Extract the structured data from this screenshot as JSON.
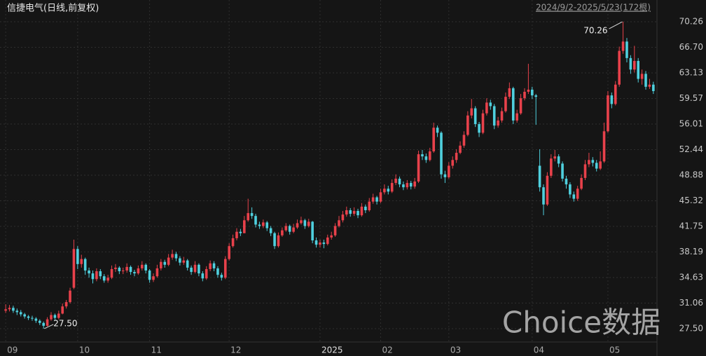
{
  "chart_data": {
    "type": "candlestick",
    "title": "信捷电气(日线,前复权)",
    "range_label": "2024/9/2-2025/5/23(172根)",
    "watermark": "Choice数据",
    "up_color": "#e8414b",
    "down_color": "#4fd0de",
    "ylim": [
      25.74,
      73.29
    ],
    "yticks": [
      70.26,
      {
        "value": 66.7,
        "label": "66.70"
      },
      63.13,
      59.57,
      56.01,
      52.44,
      48.88,
      45.32,
      41.75,
      38.19,
      34.63,
      31.06,
      {
        "value": 27.5,
        "label": "27.50"
      }
    ],
    "xlim": [
      -1.5,
      171.4
    ],
    "xticks": [
      {
        "value": 0,
        "label": "09"
      },
      {
        "value": 19,
        "label": "10"
      },
      {
        "value": 38,
        "label": "11"
      },
      {
        "value": 59,
        "label": "12"
      },
      {
        "value": 83,
        "label": "2025"
      },
      {
        "value": 99,
        "label": "02"
      },
      {
        "value": 117,
        "label": "03"
      },
      {
        "value": 139,
        "label": "04"
      },
      {
        "value": 159,
        "label": "05"
      }
    ],
    "grid": true,
    "annotations": [
      {
        "value": 70.26,
        "label": "70.26"
      },
      {
        "value": 27.5,
        "label": "27.50"
      }
    ],
    "open": [
      30.0,
      30.2,
      30.4,
      30.0,
      29.8,
      29.5,
      29.2,
      29.0,
      28.9,
      28.6,
      28.3,
      27.9,
      28.8,
      29.4,
      29.0,
      29.6,
      30.6,
      31.2,
      33.2,
      38.6,
      36.5,
      37.2,
      35.6,
      35.2,
      34.4,
      35.5,
      34.8,
      34.2,
      34.6,
      35.8,
      36.0,
      35.5,
      35.6,
      36.1,
      35.4,
      35.2,
      35.9,
      36.4,
      35.6,
      34.3,
      34.8,
      35.9,
      36.8,
      36.4,
      37.4,
      37.9,
      37.3,
      36.7,
      37.0,
      36.0,
      35.4,
      36.4,
      35.2,
      34.5,
      35.8,
      36.6,
      35.9,
      35.0,
      34.6,
      37.2,
      39.0,
      40.1,
      41.0,
      40.8,
      42.6,
      43.6,
      43.2,
      42.0,
      41.8,
      42.3,
      41.5,
      40.8,
      39.0,
      40.5,
      41.2,
      41.8,
      41.0,
      41.6,
      42.2,
      42.6,
      41.8,
      42.4,
      39.8,
      39.2,
      39.5,
      39.3,
      40.2,
      40.5,
      41.8,
      42.6,
      43.4,
      44.0,
      43.5,
      43.9,
      43.3,
      44.5,
      44.0,
      45.2,
      45.8,
      45.2,
      46.5,
      47.0,
      46.6,
      47.8,
      48.4,
      47.6,
      47.2,
      47.8,
      47.3,
      48.0,
      51.8,
      51.5,
      51.0,
      52.2,
      55.5,
      54.8,
      49.0,
      48.6,
      50.2,
      51.0,
      52.0,
      53.0,
      54.5,
      57.2,
      58.2,
      56.0,
      54.8,
      57.5,
      59.0,
      58.5,
      55.8,
      56.5,
      57.8,
      59.8,
      61.0,
      56.5,
      57.5,
      59.6,
      60.5,
      60.8,
      60.0,
      50.2,
      47.2,
      44.8,
      48.8,
      51.2,
      51.5,
      50.5,
      48.4,
      47.6,
      46.2,
      45.6,
      47.0,
      48.5,
      50.4,
      51.0,
      50.6,
      49.8,
      50.8,
      55.0,
      60.0,
      58.8,
      61.5,
      66.2,
      67.5,
      65.2,
      63.6,
      64.8,
      62.3,
      63.0,
      61.2,
      61.5
    ],
    "high": [
      30.9,
      30.8,
      30.7,
      30.3,
      30.1,
      29.7,
      29.4,
      29.3,
      29.1,
      28.8,
      28.5,
      29.1,
      29.8,
      29.6,
      30.0,
      31.0,
      31.5,
      33.2,
      39.9,
      39.0,
      37.8,
      37.4,
      36.0,
      35.6,
      35.9,
      35.8,
      35.1,
      35.0,
      36.3,
      36.5,
      36.2,
      36.0,
      36.6,
      36.3,
      35.7,
      36.3,
      36.9,
      36.6,
      35.8,
      35.2,
      36.4,
      37.2,
      37.1,
      37.9,
      38.5,
      38.2,
      37.6,
      37.5,
      37.2,
      36.3,
      36.9,
      36.6,
      35.5,
      36.2,
      37.0,
      36.9,
      36.2,
      35.3,
      37.6,
      39.4,
      40.6,
      41.5,
      41.4,
      43.2,
      45.6,
      44.4,
      43.5,
      42.4,
      42.7,
      42.5,
      41.8,
      41.0,
      40.9,
      41.6,
      42.2,
      42.0,
      42.1,
      42.7,
      43.1,
      42.8,
      42.8,
      42.5,
      40.2,
      39.9,
      39.9,
      40.6,
      41.0,
      42.2,
      43.2,
      43.9,
      44.5,
      44.3,
      44.4,
      44.2,
      45.0,
      44.8,
      45.7,
      46.3,
      46.0,
      47.0,
      47.6,
      47.4,
      48.3,
      49.0,
      48.7,
      48.0,
      48.2,
      48.1,
      48.5,
      52.3,
      52.4,
      51.9,
      52.7,
      56.2,
      55.8,
      55.0,
      49.5,
      50.7,
      51.5,
      52.5,
      53.6,
      55.0,
      57.8,
      59.5,
      58.5,
      56.3,
      58.0,
      59.6,
      59.4,
      58.8,
      57.0,
      58.3,
      60.4,
      61.8,
      61.2,
      58.0,
      60.2,
      61.0,
      64.4,
      61.2,
      60.2,
      52.5,
      47.6,
      49.3,
      51.8,
      52.4,
      51.8,
      50.8,
      48.8,
      47.9,
      46.6,
      47.4,
      49.0,
      51.0,
      52.0,
      51.4,
      51.0,
      52.2,
      56.2,
      60.6,
      60.4,
      62.0,
      66.8,
      70.26,
      68.0,
      65.6,
      66.9,
      65.2,
      63.6,
      63.4,
      62.3,
      61.9
    ],
    "low": [
      29.7,
      29.9,
      29.7,
      29.4,
      29.2,
      28.9,
      28.7,
      28.6,
      28.3,
      28.0,
      27.5,
      27.8,
      28.6,
      28.7,
      28.8,
      29.5,
      30.3,
      31.0,
      33.0,
      35.8,
      36.0,
      35.0,
      34.6,
      33.8,
      34.1,
      34.4,
      33.9,
      33.9,
      34.4,
      35.4,
      35.1,
      35.1,
      35.3,
      35.0,
      34.8,
      35.0,
      35.6,
      35.2,
      33.9,
      34.0,
      34.6,
      35.6,
      36.0,
      36.2,
      37.1,
      36.9,
      36.3,
      36.4,
      35.6,
      35.0,
      35.2,
      34.8,
      34.1,
      34.3,
      35.5,
      35.5,
      34.6,
      34.2,
      34.4,
      37.0,
      38.8,
      39.8,
      40.4,
      40.8,
      42.4,
      42.8,
      41.6,
      41.4,
      41.5,
      41.1,
      40.4,
      38.6,
      38.8,
      40.3,
      41.0,
      40.6,
      40.8,
      41.4,
      42.0,
      41.4,
      41.6,
      39.4,
      38.8,
      38.8,
      38.7,
      39.1,
      39.9,
      40.3,
      41.6,
      42.3,
      43.1,
      43.1,
      43.2,
      42.9,
      43.1,
      43.6,
      43.8,
      44.9,
      44.8,
      45.0,
      46.2,
      46.2,
      46.4,
      47.5,
      47.2,
      46.8,
      46.9,
      46.9,
      47.0,
      47.8,
      51.0,
      50.6,
      50.8,
      52.0,
      54.2,
      48.4,
      47.8,
      48.4,
      49.8,
      50.6,
      51.8,
      52.7,
      54.3,
      56.8,
      55.6,
      54.2,
      54.6,
      57.2,
      58.0,
      55.3,
      55.5,
      56.2,
      57.6,
      59.5,
      56.0,
      56.2,
      57.3,
      59.3,
      60.2,
      59.5,
      55.9,
      46.6,
      43.3,
      44.6,
      48.5,
      50.8,
      50.0,
      48.0,
      47.0,
      45.7,
      45.2,
      45.3,
      46.8,
      48.2,
      50.0,
      50.1,
      49.4,
      49.6,
      50.6,
      54.8,
      58.2,
      58.6,
      61.2,
      65.8,
      64.6,
      63.0,
      63.2,
      61.8,
      61.5,
      60.8,
      60.9,
      60.2
    ],
    "close": [
      30.2,
      30.4,
      30.0,
      29.8,
      29.5,
      29.2,
      29.0,
      28.9,
      28.6,
      28.3,
      27.9,
      28.8,
      29.4,
      29.0,
      29.6,
      30.6,
      31.2,
      32.8,
      38.6,
      36.5,
      37.2,
      35.6,
      35.2,
      34.4,
      35.5,
      34.8,
      34.2,
      34.6,
      35.8,
      36.0,
      35.5,
      35.6,
      36.1,
      35.4,
      35.2,
      35.9,
      36.4,
      35.6,
      34.3,
      34.8,
      35.9,
      36.8,
      36.4,
      37.4,
      37.9,
      37.3,
      36.7,
      37.0,
      36.0,
      35.4,
      36.4,
      35.2,
      34.5,
      35.8,
      36.6,
      35.9,
      35.0,
      34.6,
      37.2,
      39.0,
      40.1,
      41.0,
      40.8,
      42.6,
      43.6,
      43.2,
      42.0,
      41.8,
      42.3,
      41.5,
      40.8,
      39.0,
      40.5,
      41.2,
      41.8,
      41.0,
      41.6,
      42.2,
      42.6,
      41.8,
      42.4,
      39.8,
      39.2,
      39.5,
      39.3,
      40.2,
      40.5,
      41.8,
      42.6,
      43.4,
      44.0,
      43.5,
      43.9,
      43.3,
      44.5,
      44.0,
      45.2,
      45.8,
      45.2,
      46.5,
      47.0,
      46.6,
      47.8,
      48.4,
      47.6,
      47.2,
      47.8,
      47.3,
      48.0,
      51.8,
      51.5,
      51.0,
      52.2,
      55.5,
      54.8,
      49.0,
      48.6,
      50.2,
      51.0,
      52.0,
      53.0,
      54.5,
      57.2,
      58.2,
      56.0,
      54.8,
      57.5,
      59.0,
      58.5,
      55.8,
      56.5,
      57.8,
      59.8,
      61.0,
      56.5,
      57.5,
      59.6,
      60.5,
      60.8,
      60.0,
      59.8,
      47.2,
      44.8,
      48.8,
      51.2,
      51.5,
      50.5,
      48.4,
      47.6,
      46.2,
      45.6,
      47.0,
      48.5,
      50.4,
      51.0,
      50.6,
      49.8,
      50.8,
      55.0,
      60.0,
      58.8,
      61.5,
      66.2,
      67.5,
      65.2,
      63.6,
      64.8,
      62.3,
      63.0,
      61.2,
      61.5,
      60.6
    ]
  }
}
